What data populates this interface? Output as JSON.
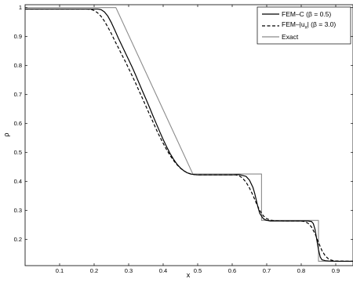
{
  "chart_data": {
    "type": "line",
    "title": "",
    "xlabel": "x",
    "ylabel": "ρ",
    "xlim": [
      0,
      0.95
    ],
    "ylim": [
      0.11,
      1.01
    ],
    "xticks": [
      0.1,
      0.2,
      0.3,
      0.4,
      0.5,
      0.6,
      0.7,
      0.8,
      0.9
    ],
    "yticks": [
      0.2,
      0.3,
      0.4,
      0.5,
      0.6,
      0.7,
      0.8,
      0.9,
      1.0
    ],
    "xtick_labels": [
      "0.1",
      "0.2",
      "0.3",
      "0.4",
      "0.5",
      "0.6",
      "0.7",
      "0.8",
      "0.9"
    ],
    "ytick_labels": [
      "0.2",
      "0.3",
      "0.4",
      "0.5",
      "0.6",
      "0.7",
      "0.8",
      "0.9",
      "1"
    ],
    "grid": false,
    "legend_position": "top-right",
    "series": [
      {
        "name": "FEM–C (β = 0.5)",
        "color": "#000000",
        "dash": "solid",
        "x": [
          0.0,
          0.2,
          0.21,
          0.22,
          0.23,
          0.24,
          0.25,
          0.26,
          0.27,
          0.28,
          0.29,
          0.3,
          0.31,
          0.32,
          0.33,
          0.34,
          0.35,
          0.36,
          0.37,
          0.38,
          0.39,
          0.4,
          0.41,
          0.42,
          0.43,
          0.44,
          0.45,
          0.46,
          0.47,
          0.48,
          0.49,
          0.5,
          0.52,
          0.55,
          0.6,
          0.62,
          0.64,
          0.65,
          0.66,
          0.665,
          0.67,
          0.675,
          0.68,
          0.69,
          0.7,
          0.71,
          0.72,
          0.75,
          0.8,
          0.82,
          0.83,
          0.835,
          0.84,
          0.845,
          0.85,
          0.855,
          0.86,
          0.87,
          0.88,
          0.9,
          0.95
        ],
        "y": [
          0.995,
          0.995,
          0.995,
          0.993,
          0.985,
          0.97,
          0.948,
          0.922,
          0.895,
          0.87,
          0.845,
          0.82,
          0.795,
          0.768,
          0.74,
          0.712,
          0.685,
          0.657,
          0.628,
          0.6,
          0.572,
          0.545,
          0.52,
          0.497,
          0.477,
          0.46,
          0.447,
          0.437,
          0.43,
          0.426,
          0.424,
          0.423,
          0.423,
          0.423,
          0.423,
          0.424,
          0.418,
          0.405,
          0.38,
          0.36,
          0.335,
          0.31,
          0.29,
          0.272,
          0.266,
          0.264,
          0.264,
          0.264,
          0.264,
          0.264,
          0.262,
          0.255,
          0.235,
          0.2,
          0.165,
          0.14,
          0.13,
          0.127,
          0.126,
          0.125,
          0.125
        ]
      },
      {
        "name": "FEM–|u_x| (β = 3.0)",
        "color": "#000000",
        "dash": "dashed",
        "x": [
          0.0,
          0.18,
          0.19,
          0.2,
          0.21,
          0.22,
          0.23,
          0.24,
          0.25,
          0.26,
          0.27,
          0.28,
          0.29,
          0.3,
          0.31,
          0.32,
          0.33,
          0.34,
          0.35,
          0.36,
          0.37,
          0.38,
          0.39,
          0.4,
          0.41,
          0.42,
          0.43,
          0.44,
          0.45,
          0.46,
          0.47,
          0.48,
          0.49,
          0.5,
          0.52,
          0.55,
          0.6,
          0.61,
          0.62,
          0.63,
          0.64,
          0.65,
          0.66,
          0.67,
          0.68,
          0.69,
          0.7,
          0.71,
          0.72,
          0.75,
          0.8,
          0.81,
          0.82,
          0.83,
          0.84,
          0.85,
          0.86,
          0.87,
          0.88,
          0.89,
          0.9,
          0.95
        ],
        "y": [
          0.995,
          0.995,
          0.994,
          0.99,
          0.982,
          0.97,
          0.953,
          0.932,
          0.91,
          0.885,
          0.862,
          0.838,
          0.815,
          0.79,
          0.765,
          0.74,
          0.713,
          0.687,
          0.66,
          0.633,
          0.607,
          0.58,
          0.555,
          0.532,
          0.51,
          0.49,
          0.473,
          0.458,
          0.446,
          0.437,
          0.43,
          0.426,
          0.424,
          0.423,
          0.423,
          0.423,
          0.423,
          0.423,
          0.42,
          0.412,
          0.398,
          0.378,
          0.353,
          0.325,
          0.3,
          0.282,
          0.272,
          0.267,
          0.265,
          0.264,
          0.264,
          0.262,
          0.256,
          0.243,
          0.22,
          0.19,
          0.162,
          0.143,
          0.132,
          0.128,
          0.126,
          0.125
        ]
      },
      {
        "name": "Exact",
        "color": "#8a8a8a",
        "dash": "solid",
        "x": [
          0.0,
          0.263,
          0.486,
          0.486,
          0.685,
          0.685,
          0.685,
          0.85,
          0.85,
          0.95
        ],
        "y": [
          1.0,
          1.0,
          0.426,
          0.426,
          0.426,
          0.266,
          0.266,
          0.266,
          0.125,
          0.125
        ]
      }
    ]
  }
}
